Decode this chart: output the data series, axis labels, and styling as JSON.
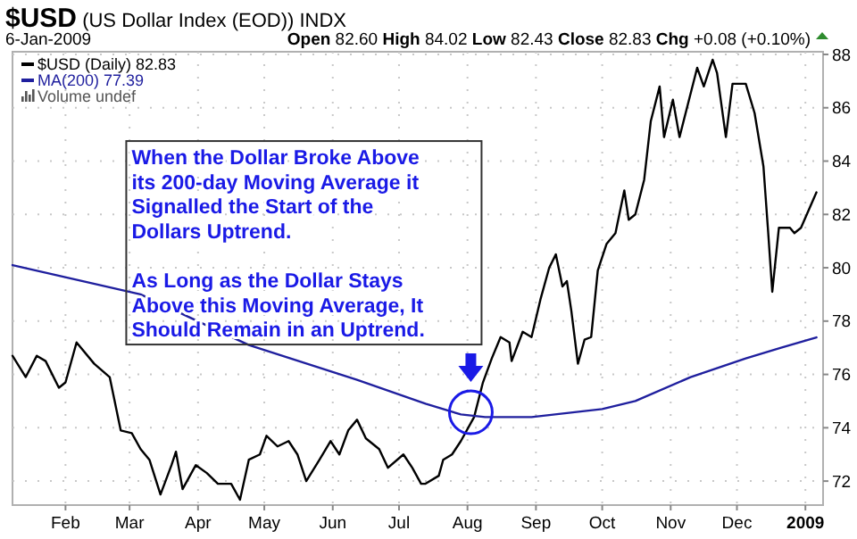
{
  "chart_data": {
    "type": "line",
    "title": "$USD (US Dollar Index (EOD)) INDX",
    "subtitle": "6-Jan-2009",
    "annotations": [
      "Open 82.60  High 84.02  Low 82.43  Close 82.83  Chg +0.08 (+0.10%)",
      "Volume undef",
      "When the Dollar Broke Above",
      "its 200-day Moving Average it",
      "Signalled the Start of the",
      "Dollars Uptrend.",
      "As Long as the Dollar Stays",
      "Above this Moving Average, It",
      "Should Remain in an Uptrend."
    ],
    "series": [
      {
        "name": "$USD (Daily) 82.83",
        "color": "#000000",
        "x": [
          "2008-01-08",
          "2008-01-14",
          "2008-01-19",
          "2008-01-23",
          "2008-01-29",
          "2008-02-01",
          "2008-02-06",
          "2008-02-14",
          "2008-02-21",
          "2008-02-26",
          "2008-03-02",
          "2008-03-06",
          "2008-03-10",
          "2008-03-15",
          "2008-03-20",
          "2008-03-22",
          "2008-03-25",
          "2008-03-31",
          "2008-04-05",
          "2008-04-10",
          "2008-04-16",
          "2008-04-20",
          "2008-04-24",
          "2008-04-29",
          "2008-05-02",
          "2008-05-07",
          "2008-05-12",
          "2008-05-16",
          "2008-05-20",
          "2008-05-26",
          "2008-05-31",
          "2008-06-04",
          "2008-06-08",
          "2008-06-12",
          "2008-06-16",
          "2008-06-22",
          "2008-06-26",
          "2008-07-03",
          "2008-07-07",
          "2008-07-11",
          "2008-07-13",
          "2008-07-19",
          "2008-07-21",
          "2008-07-25",
          "2008-07-29",
          "2008-08-04",
          "2008-08-08",
          "2008-08-12",
          "2008-08-16",
          "2008-08-20",
          "2008-08-21",
          "2008-08-26",
          "2008-08-30",
          "2008-09-03",
          "2008-09-07",
          "2008-09-10",
          "2008-09-13",
          "2008-09-15",
          "2008-09-17",
          "2008-09-20",
          "2008-09-23",
          "2008-09-26",
          "2008-09-29",
          "2008-10-03",
          "2008-10-07",
          "2008-10-11",
          "2008-10-13",
          "2008-10-16",
          "2008-10-20",
          "2008-10-23",
          "2008-10-27",
          "2008-10-29",
          "2008-11-02",
          "2008-11-05",
          "2008-11-09",
          "2008-11-13",
          "2008-11-16",
          "2008-11-20",
          "2008-11-22",
          "2008-11-26",
          "2008-11-29",
          "2008-12-05",
          "2008-12-09",
          "2008-12-13",
          "2008-12-15",
          "2008-12-17",
          "2008-12-20",
          "2008-12-25",
          "2008-12-27",
          "2008-12-30",
          "2009-01-06"
        ],
        "values": [
          76.7,
          75.9,
          76.7,
          76.5,
          75.5,
          75.7,
          77.2,
          76.4,
          75.9,
          73.9,
          73.8,
          73.2,
          72.8,
          71.5,
          72.6,
          73.1,
          71.7,
          72.6,
          72.3,
          71.9,
          71.9,
          71.3,
          72.8,
          73.0,
          73.7,
          73.3,
          73.5,
          73.0,
          72.0,
          72.8,
          73.5,
          73.0,
          73.9,
          74.3,
          73.6,
          73.2,
          72.5,
          73.0,
          72.5,
          71.9,
          71.9,
          72.2,
          72.8,
          73.0,
          73.5,
          74.4,
          75.7,
          76.6,
          77.4,
          77.2,
          76.5,
          77.6,
          77.4,
          78.8,
          80.0,
          80.5,
          79.3,
          79.5,
          78.4,
          76.4,
          77.3,
          77.4,
          79.9,
          80.9,
          81.3,
          82.9,
          81.8,
          82.0,
          83.3,
          85.5,
          86.8,
          84.9,
          86.3,
          84.9,
          86.2,
          87.5,
          86.8,
          87.8,
          87.3,
          84.9,
          86.9,
          86.9,
          85.8,
          83.8,
          81.5,
          79.1,
          81.5,
          81.5,
          81.3,
          81.5,
          82.83
        ]
      },
      {
        "name": "MA(200) 77.39",
        "color": "#1f1f9e",
        "x": [
          "2008-01-08",
          "2008-03-06",
          "2008-04-24",
          "2008-06-12",
          "2008-07-13",
          "2008-07-29",
          "2008-08-09",
          "2008-08-30",
          "2008-10-01",
          "2008-10-16",
          "2008-11-10",
          "2008-12-05",
          "2008-12-21",
          "2009-01-06"
        ],
        "values": [
          80.1,
          79.0,
          77.1,
          75.8,
          74.9,
          74.5,
          74.4,
          74.4,
          74.7,
          75.0,
          75.9,
          76.6,
          77.0,
          77.39
        ]
      }
    ],
    "xlim": [
      "2008-01-08",
      "2009-01-09"
    ],
    "xticks": [
      {
        "value": "2008-02-01",
        "label": "Feb"
      },
      {
        "value": "2008-03-01",
        "label": "Mar"
      },
      {
        "value": "2008-04-01",
        "label": "Apr"
      },
      {
        "value": "2008-05-01",
        "label": "May"
      },
      {
        "value": "2008-06-01",
        "label": "Jun"
      },
      {
        "value": "2008-07-01",
        "label": "Jul"
      },
      {
        "value": "2008-08-01",
        "label": "Aug"
      },
      {
        "value": "2008-09-01",
        "label": "Sep"
      },
      {
        "value": "2008-10-01",
        "label": "Oct"
      },
      {
        "value": "2008-11-01",
        "label": "Nov"
      },
      {
        "value": "2008-12-01",
        "label": "Dec"
      },
      {
        "value": "2009-01-01",
        "label": "2009"
      }
    ],
    "ylim": [
      71.1,
      88.1
    ],
    "yticks": [
      72,
      74,
      76,
      78,
      80,
      82,
      84,
      86,
      88
    ],
    "grid": true,
    "legend": "top left",
    "marker": "none",
    "line_style": "solid"
  }
}
